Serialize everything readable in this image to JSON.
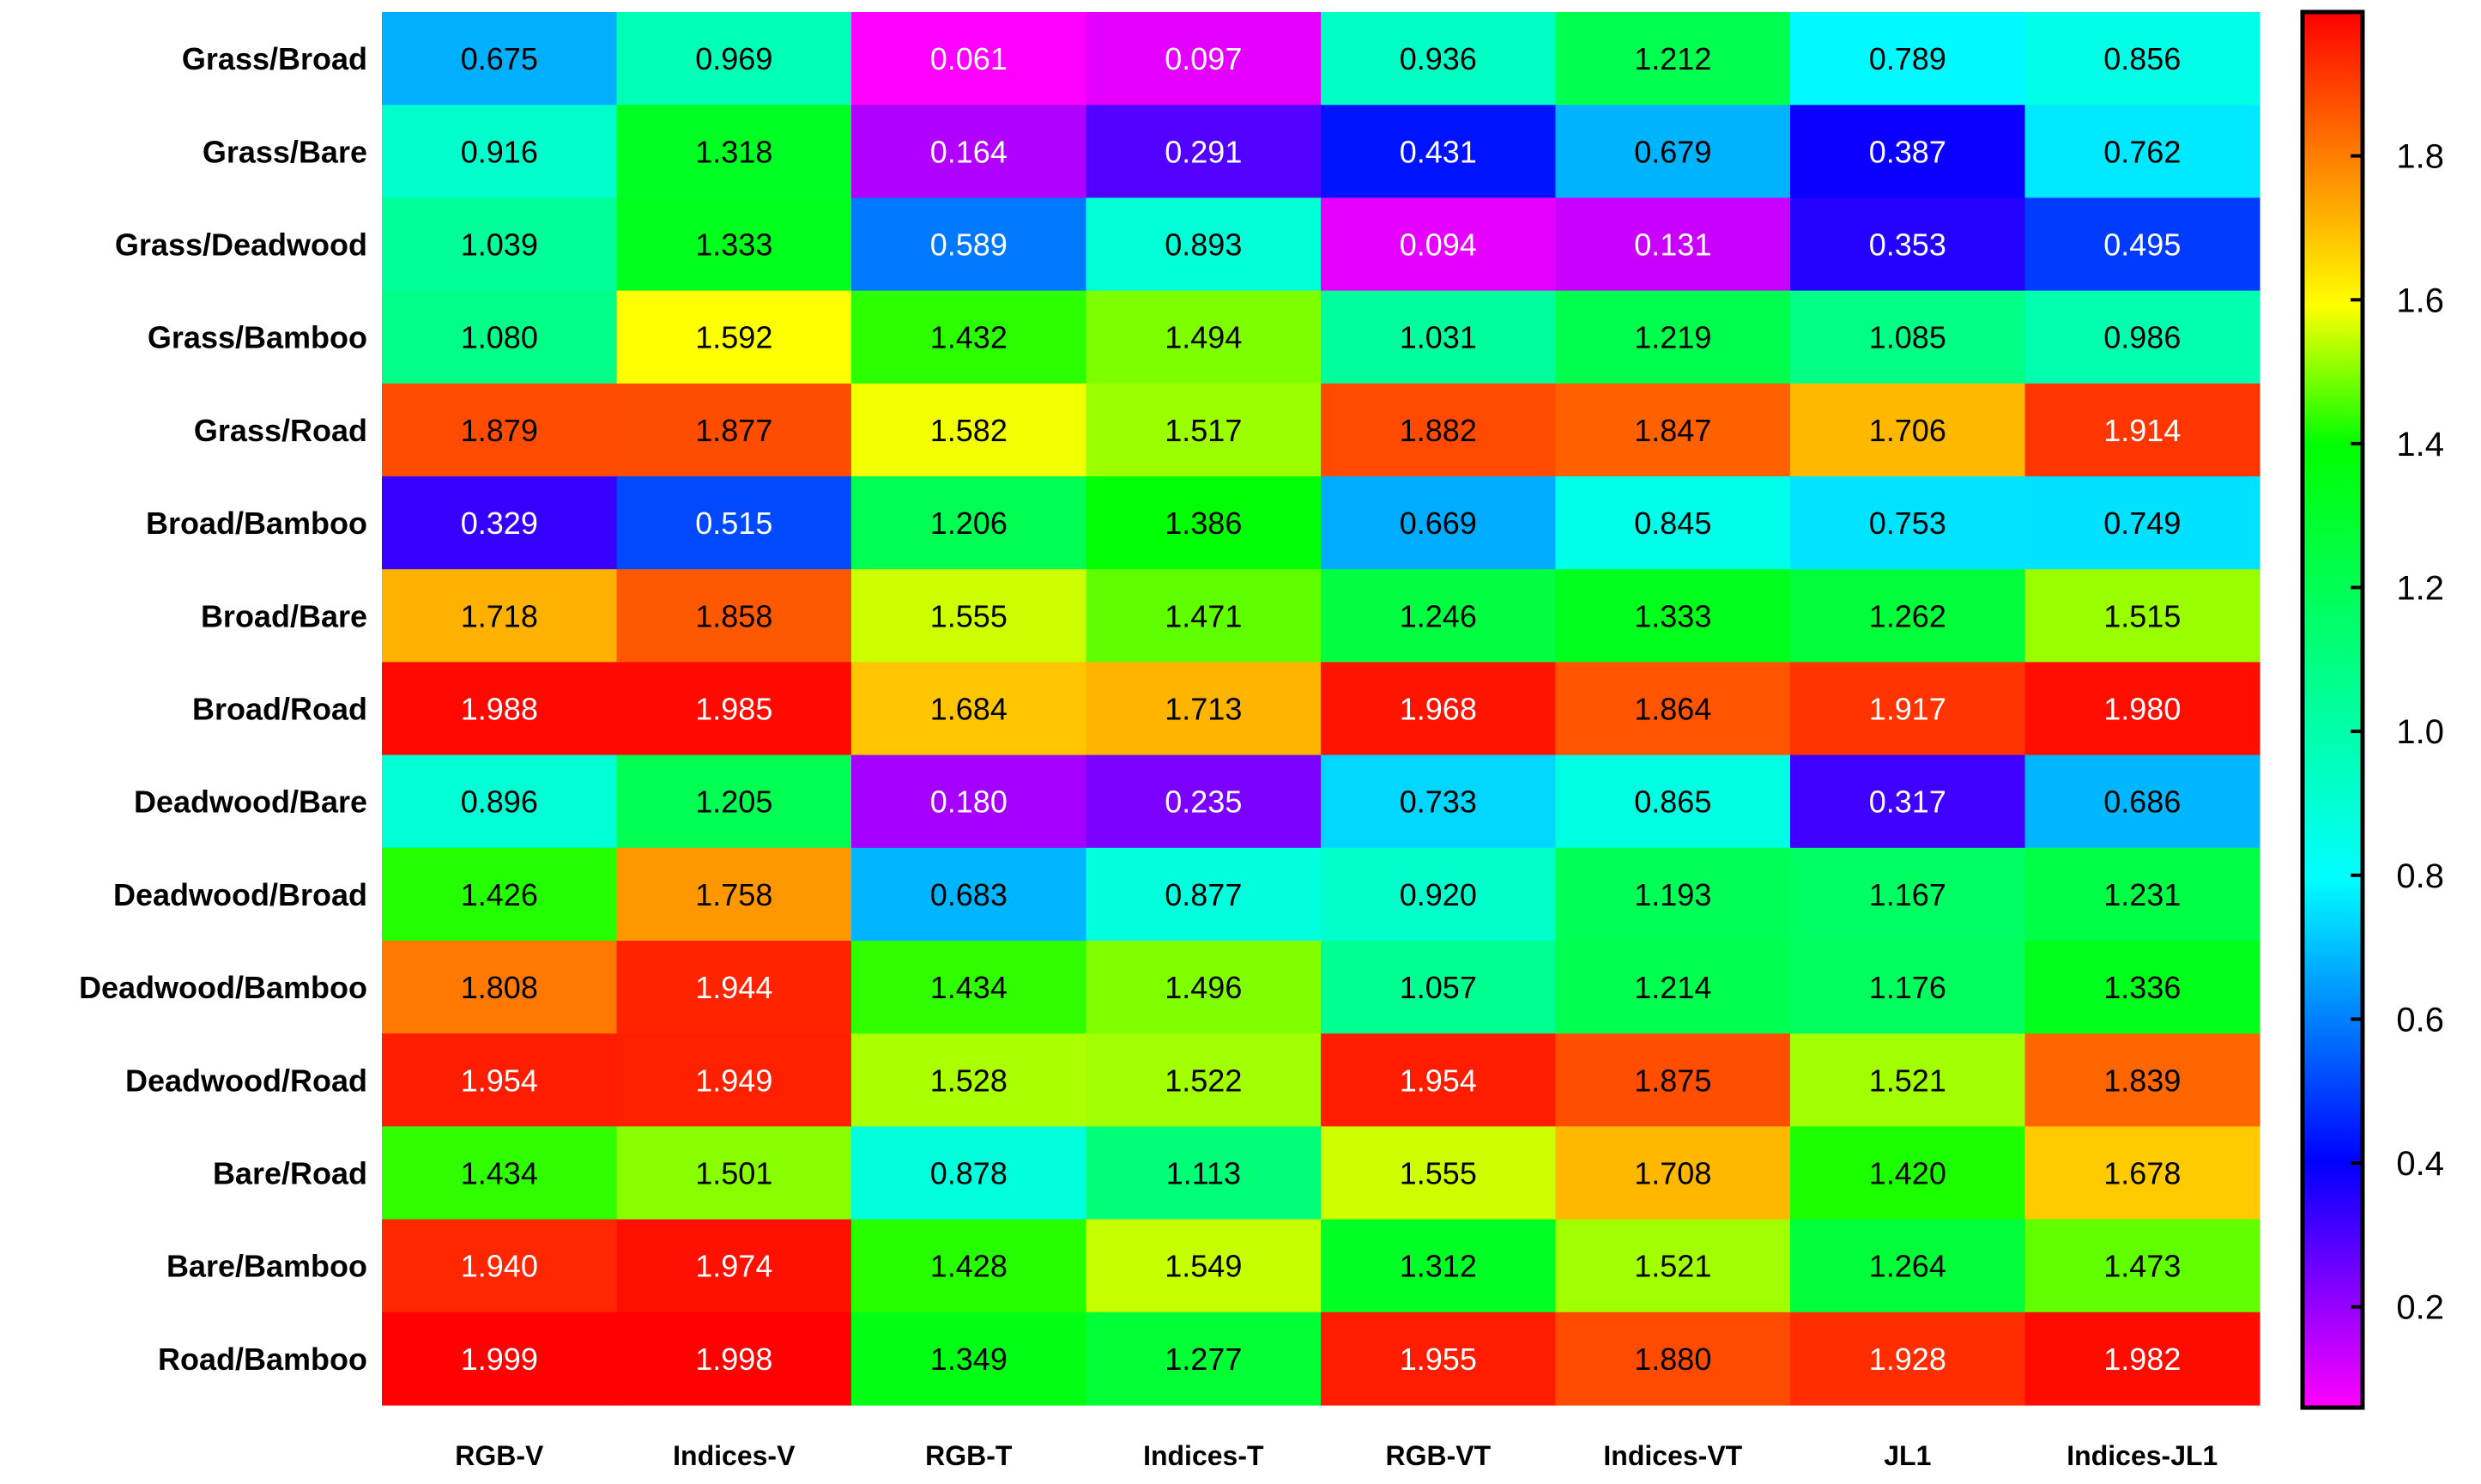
{
  "chart_data": {
    "type": "heatmap",
    "rows": [
      "Grass/Broad",
      "Grass/Bare",
      "Grass/Deadwood",
      "Grass/Bamboo",
      "Grass/Road",
      "Broad/Bamboo",
      "Broad/Bare",
      "Broad/Road",
      "Deadwood/Bare",
      "Deadwood/Broad",
      "Deadwood/Bamboo",
      "Deadwood/Road",
      "Bare/Road",
      "Bare/Bamboo",
      "Road/Bamboo"
    ],
    "columns": [
      "RGB-V",
      "Indices-V",
      "RGB-T",
      "Indices-T",
      "RGB-VT",
      "Indices-VT",
      "JL1",
      "Indices-JL1"
    ],
    "values": [
      [
        "0.675",
        "0.969",
        "0.061",
        "0.097",
        "0.936",
        "1.212",
        "0.789",
        "0.856"
      ],
      [
        "0.916",
        "1.318",
        "0.164",
        "0.291",
        "0.431",
        "0.679",
        "0.387",
        "0.762"
      ],
      [
        "1.039",
        "1.333",
        "0.589",
        "0.893",
        "0.094",
        "0.131",
        "0.353",
        "0.495"
      ],
      [
        "1.080",
        "1.592",
        "1.432",
        "1.494",
        "1.031",
        "1.219",
        "1.085",
        "0.986"
      ],
      [
        "1.879",
        "1.877",
        "1.582",
        "1.517",
        "1.882",
        "1.847",
        "1.706",
        "1.914"
      ],
      [
        "0.329",
        "0.515",
        "1.206",
        "1.386",
        "0.669",
        "0.845",
        "0.753",
        "0.749"
      ],
      [
        "1.718",
        "1.858",
        "1.555",
        "1.471",
        "1.246",
        "1.333",
        "1.262",
        "1.515"
      ],
      [
        "1.988",
        "1.985",
        "1.684",
        "1.713",
        "1.968",
        "1.864",
        "1.917",
        "1.980"
      ],
      [
        "0.896",
        "1.205",
        "0.180",
        "0.235",
        "0.733",
        "0.865",
        "0.317",
        "0.686"
      ],
      [
        "1.426",
        "1.758",
        "0.683",
        "0.877",
        "0.920",
        "1.193",
        "1.167",
        "1.231"
      ],
      [
        "1.808",
        "1.944",
        "1.434",
        "1.496",
        "1.057",
        "1.214",
        "1.176",
        "1.336"
      ],
      [
        "1.954",
        "1.949",
        "1.528",
        "1.522",
        "1.954",
        "1.875",
        "1.521",
        "1.839"
      ],
      [
        "1.434",
        "1.501",
        "0.878",
        "1.113",
        "1.555",
        "1.708",
        "1.420",
        "1.678"
      ],
      [
        "1.940",
        "1.974",
        "1.428",
        "1.549",
        "1.312",
        "1.521",
        "1.264",
        "1.473"
      ],
      [
        "1.999",
        "1.998",
        "1.349",
        "1.277",
        "1.955",
        "1.880",
        "1.928",
        "1.982"
      ]
    ],
    "colorbar": {
      "min": 0.06,
      "max": 2.0,
      "ticks": [
        "0.2",
        "0.4",
        "0.6",
        "0.8",
        "1.0",
        "1.2",
        "1.4",
        "1.6",
        "1.8"
      ],
      "colormap": [
        "#ff00ff",
        "#0000ff",
        "#00ffff",
        "#00ff00",
        "#ffff00",
        "#ff0000"
      ]
    }
  }
}
